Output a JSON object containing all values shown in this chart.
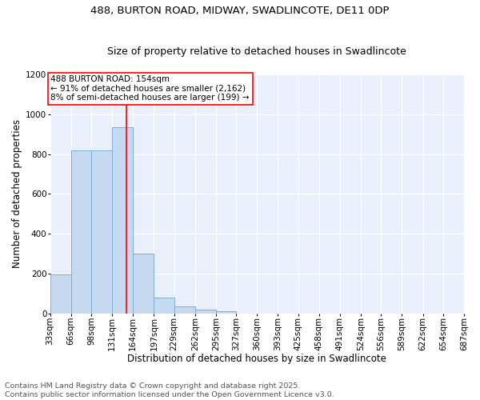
{
  "title_line1": "488, BURTON ROAD, MIDWAY, SWADLINCOTE, DE11 0DP",
  "title_line2": "Size of property relative to detached houses in Swadlincote",
  "xlabel": "Distribution of detached houses by size in Swadlincote",
  "ylabel": "Number of detached properties",
  "bin_edges": [
    33,
    66,
    98,
    131,
    164,
    197,
    229,
    262,
    295,
    327,
    360,
    393,
    425,
    458,
    491,
    524,
    556,
    589,
    622,
    654,
    687
  ],
  "bin_labels": [
    "33sqm",
    "66sqm",
    "98sqm",
    "131sqm",
    "164sqm",
    "197sqm",
    "229sqm",
    "262sqm",
    "295sqm",
    "327sqm",
    "360sqm",
    "393sqm",
    "425sqm",
    "458sqm",
    "491sqm",
    "524sqm",
    "556sqm",
    "589sqm",
    "622sqm",
    "654sqm",
    "687sqm"
  ],
  "values": [
    197,
    820,
    820,
    935,
    300,
    80,
    35,
    20,
    10,
    0,
    0,
    0,
    0,
    0,
    0,
    0,
    0,
    0,
    0,
    0
  ],
  "bar_color": "#c5d9f0",
  "bar_edge_color": "#7eaed4",
  "ref_line_x": 154,
  "ref_line_color": "red",
  "annotation_text": "488 BURTON ROAD: 154sqm\n← 91% of detached houses are smaller (2,162)\n8% of semi-detached houses are larger (199) →",
  "annotation_box_facecolor": "white",
  "annotation_box_edgecolor": "red",
  "ylim": [
    0,
    1200
  ],
  "yticks": [
    0,
    200,
    400,
    600,
    800,
    1000,
    1200
  ],
  "background_color": "#eaf0fb",
  "grid_color": "white",
  "footer_line1": "Contains HM Land Registry data © Crown copyright and database right 2025.",
  "footer_line2": "Contains public sector information licensed under the Open Government Licence v3.0.",
  "title_fontsize": 9.5,
  "subtitle_fontsize": 9,
  "axis_label_fontsize": 8.5,
  "tick_fontsize": 7.5,
  "footer_fontsize": 6.8,
  "annotation_fontsize": 7.5
}
